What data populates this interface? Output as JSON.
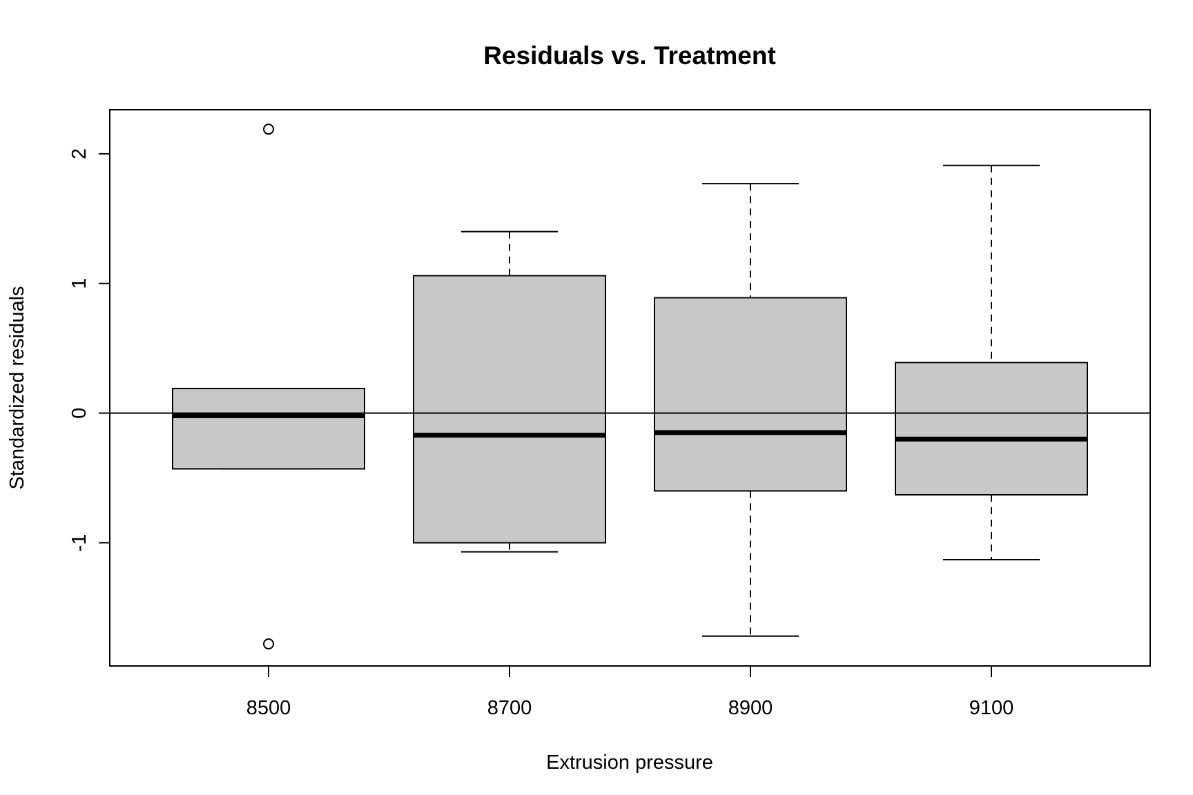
{
  "chart_data": {
    "type": "boxplot",
    "title": "Residuals vs. Treatment",
    "xlabel": "Extrusion pressure",
    "ylabel": "Standardized residuals",
    "categories": [
      "8500",
      "8700",
      "8900",
      "9100"
    ],
    "y_ticks": [
      -1,
      0,
      1,
      2
    ],
    "y_tick_labels": [
      "-1",
      "0",
      "1",
      "2"
    ],
    "ylim": [
      -1.95,
      2.34
    ],
    "reference_line_y": 0,
    "grid": false,
    "legend": "none",
    "boxes": [
      {
        "category": "8500",
        "whisker_low": -0.43,
        "q1": -0.43,
        "median": -0.02,
        "q3": 0.19,
        "whisker_high": 0.19,
        "outliers": [
          2.19,
          -1.78
        ]
      },
      {
        "category": "8700",
        "whisker_low": -1.07,
        "q1": -1.0,
        "median": -0.17,
        "q3": 1.06,
        "whisker_high": 1.4,
        "outliers": []
      },
      {
        "category": "8900",
        "whisker_low": -1.72,
        "q1": -0.6,
        "median": -0.15,
        "q3": 0.89,
        "whisker_high": 1.77,
        "outliers": []
      },
      {
        "category": "9100",
        "whisker_low": -1.13,
        "q1": -0.63,
        "median": -0.2,
        "q3": 0.39,
        "whisker_high": 1.91,
        "outliers": []
      }
    ],
    "colors": {
      "box_fill": "#c8c8c8",
      "stroke": "#000000",
      "background": "#ffffff"
    }
  }
}
